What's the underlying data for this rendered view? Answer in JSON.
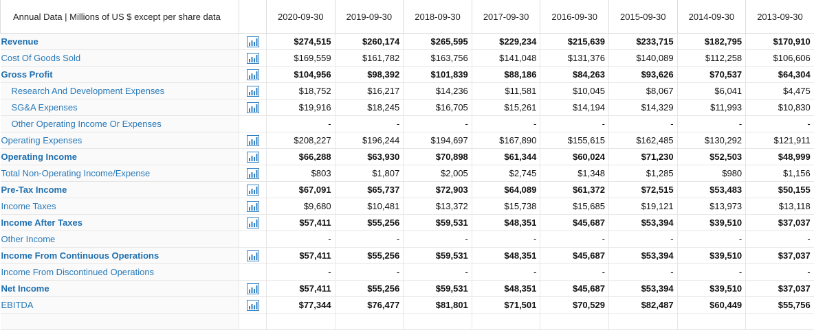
{
  "header": {
    "label": "Annual Data | Millions of US $ except per share data",
    "columns": [
      "2020-09-30",
      "2019-09-30",
      "2018-09-30",
      "2017-09-30",
      "2016-09-30",
      "2015-09-30",
      "2014-09-30",
      "2013-09-30"
    ]
  },
  "rows": [
    {
      "label": "Revenue",
      "bold": true,
      "indent": false,
      "chart": true,
      "values_bold": true,
      "values": [
        "$274,515",
        "$260,174",
        "$265,595",
        "$229,234",
        "$215,639",
        "$233,715",
        "$182,795",
        "$170,910"
      ]
    },
    {
      "label": "Cost Of Goods Sold",
      "bold": false,
      "indent": false,
      "chart": true,
      "values_bold": false,
      "values": [
        "$169,559",
        "$161,782",
        "$163,756",
        "$141,048",
        "$131,376",
        "$140,089",
        "$112,258",
        "$106,606"
      ]
    },
    {
      "label": "Gross Profit",
      "bold": true,
      "indent": false,
      "chart": true,
      "values_bold": true,
      "values": [
        "$104,956",
        "$98,392",
        "$101,839",
        "$88,186",
        "$84,263",
        "$93,626",
        "$70,537",
        "$64,304"
      ]
    },
    {
      "label": "Research And Development Expenses",
      "bold": false,
      "indent": true,
      "chart": true,
      "values_bold": false,
      "values": [
        "$18,752",
        "$16,217",
        "$14,236",
        "$11,581",
        "$10,045",
        "$8,067",
        "$6,041",
        "$4,475"
      ]
    },
    {
      "label": "SG&A Expenses",
      "bold": false,
      "indent": true,
      "chart": true,
      "values_bold": false,
      "values": [
        "$19,916",
        "$18,245",
        "$16,705",
        "$15,261",
        "$14,194",
        "$14,329",
        "$11,993",
        "$10,830"
      ]
    },
    {
      "label": "Other Operating Income Or Expenses",
      "bold": false,
      "indent": true,
      "chart": false,
      "values_bold": false,
      "values": [
        "-",
        "-",
        "-",
        "-",
        "-",
        "-",
        "-",
        "-"
      ]
    },
    {
      "label": "Operating Expenses",
      "bold": false,
      "indent": false,
      "chart": true,
      "values_bold": false,
      "values": [
        "$208,227",
        "$196,244",
        "$194,697",
        "$167,890",
        "$155,615",
        "$162,485",
        "$130,292",
        "$121,911"
      ]
    },
    {
      "label": "Operating Income",
      "bold": true,
      "indent": false,
      "chart": true,
      "values_bold": true,
      "values": [
        "$66,288",
        "$63,930",
        "$70,898",
        "$61,344",
        "$60,024",
        "$71,230",
        "$52,503",
        "$48,999"
      ]
    },
    {
      "label": "Total Non-Operating Income/Expense",
      "bold": false,
      "indent": false,
      "chart": true,
      "values_bold": false,
      "values": [
        "$803",
        "$1,807",
        "$2,005",
        "$2,745",
        "$1,348",
        "$1,285",
        "$980",
        "$1,156"
      ]
    },
    {
      "label": "Pre-Tax Income",
      "bold": true,
      "indent": false,
      "chart": true,
      "values_bold": true,
      "values": [
        "$67,091",
        "$65,737",
        "$72,903",
        "$64,089",
        "$61,372",
        "$72,515",
        "$53,483",
        "$50,155"
      ]
    },
    {
      "label": "Income Taxes",
      "bold": false,
      "indent": false,
      "chart": true,
      "values_bold": false,
      "values": [
        "$9,680",
        "$10,481",
        "$13,372",
        "$15,738",
        "$15,685",
        "$19,121",
        "$13,973",
        "$13,118"
      ]
    },
    {
      "label": "Income After Taxes",
      "bold": true,
      "indent": false,
      "chart": true,
      "values_bold": true,
      "values": [
        "$57,411",
        "$55,256",
        "$59,531",
        "$48,351",
        "$45,687",
        "$53,394",
        "$39,510",
        "$37,037"
      ]
    },
    {
      "label": "Other Income",
      "bold": false,
      "indent": false,
      "chart": false,
      "values_bold": false,
      "values": [
        "-",
        "-",
        "-",
        "-",
        "-",
        "-",
        "-",
        "-"
      ]
    },
    {
      "label": "Income From Continuous Operations",
      "bold": true,
      "indent": false,
      "chart": true,
      "values_bold": true,
      "values": [
        "$57,411",
        "$55,256",
        "$59,531",
        "$48,351",
        "$45,687",
        "$53,394",
        "$39,510",
        "$37,037"
      ]
    },
    {
      "label": "Income From Discontinued Operations",
      "bold": false,
      "indent": false,
      "chart": false,
      "values_bold": false,
      "values": [
        "-",
        "-",
        "-",
        "-",
        "-",
        "-",
        "-",
        "-"
      ]
    },
    {
      "label": "Net Income",
      "bold": true,
      "indent": false,
      "chart": true,
      "values_bold": true,
      "values": [
        "$57,411",
        "$55,256",
        "$59,531",
        "$48,351",
        "$45,687",
        "$53,394",
        "$39,510",
        "$37,037"
      ]
    },
    {
      "label": "EBITDA",
      "bold": false,
      "indent": false,
      "chart": true,
      "values_bold": true,
      "values": [
        "$77,344",
        "$76,477",
        "$81,801",
        "$71,501",
        "$70,529",
        "$82,487",
        "$60,449",
        "$55,756"
      ]
    }
  ]
}
